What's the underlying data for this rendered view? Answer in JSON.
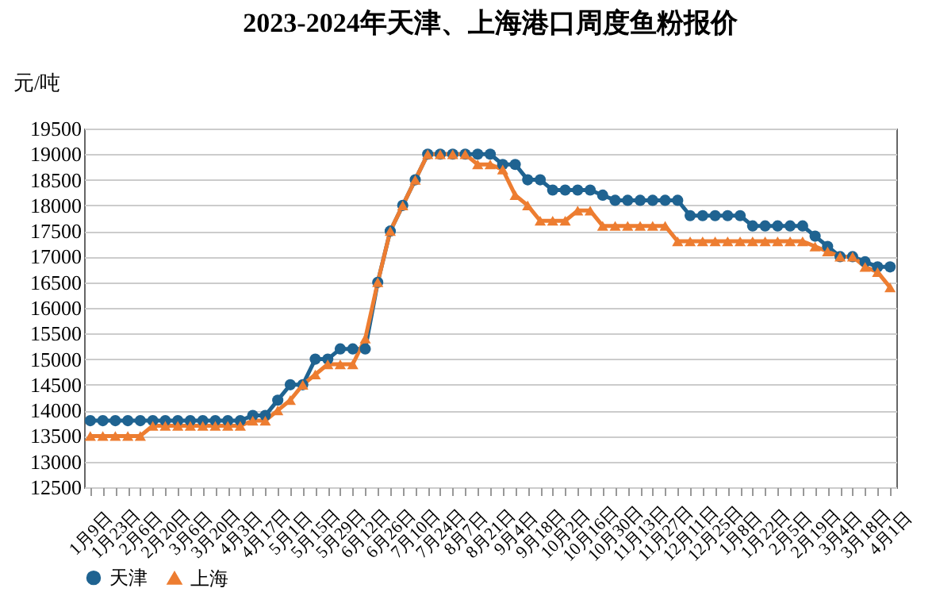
{
  "chart_data": {
    "type": "line",
    "title": "2023-2024年天津、上海港口周度鱼粉报价",
    "ylabel": "元/吨",
    "categories": [
      "1月9日",
      null,
      "1月23日",
      null,
      "2月6日",
      null,
      "2月20日",
      null,
      "3月6日",
      null,
      "3月20日",
      null,
      "4月3日",
      null,
      "4月17日",
      null,
      "5月1日",
      null,
      "5月15日",
      null,
      "5月29日",
      null,
      "6月12日",
      null,
      "6月26日",
      null,
      "7月10日",
      null,
      "7月24日",
      null,
      "8月7日",
      null,
      "8月21日",
      null,
      "9月4日",
      null,
      "9月18日",
      null,
      "10月2日",
      null,
      "10月16日",
      null,
      "10月30日",
      null,
      "11月13日",
      null,
      "11月27日",
      null,
      "12月11日",
      null,
      "12月25日",
      null,
      "1月8日",
      null,
      "1月22日",
      null,
      "2月5日",
      null,
      "2月19日",
      null,
      "3月4日",
      null,
      "3月18日",
      null,
      "4月1日"
    ],
    "series": [
      {
        "name": "天津",
        "color": "#1f6391",
        "marker": "circle",
        "values": [
          13800,
          13800,
          13800,
          13800,
          13800,
          13800,
          13800,
          13800,
          13800,
          13800,
          13800,
          13800,
          13800,
          13900,
          13900,
          14200,
          14500,
          14500,
          15000,
          15000,
          15200,
          15200,
          15200,
          16500,
          17500,
          18000,
          18500,
          19000,
          19000,
          19000,
          19000,
          19000,
          19000,
          18800,
          18800,
          18500,
          18500,
          18300,
          18300,
          18300,
          18300,
          18200,
          18100,
          18100,
          18100,
          18100,
          18100,
          18100,
          17800,
          17800,
          17800,
          17800,
          17800,
          17600,
          17600,
          17600,
          17600,
          17600,
          17400,
          17200,
          17000,
          17000,
          16900,
          16800,
          16800
        ]
      },
      {
        "name": "上海",
        "color": "#ed7d31",
        "marker": "triangle",
        "values": [
          13500,
          13500,
          13500,
          13500,
          13500,
          13700,
          13700,
          13700,
          13700,
          13700,
          13700,
          13700,
          13700,
          13800,
          13800,
          14000,
          14200,
          14500,
          14700,
          14900,
          14900,
          14900,
          15400,
          16500,
          17500,
          18000,
          18500,
          19000,
          19000,
          19000,
          19000,
          18800,
          18800,
          18700,
          18200,
          18000,
          17700,
          17700,
          17700,
          17900,
          17900,
          17600,
          17600,
          17600,
          17600,
          17600,
          17600,
          17300,
          17300,
          17300,
          17300,
          17300,
          17300,
          17300,
          17300,
          17300,
          17300,
          17300,
          17200,
          17100,
          17000,
          17000,
          16800,
          16700,
          16400
        ]
      }
    ],
    "ylim": [
      12500,
      19500
    ],
    "yticks": [
      12500,
      13000,
      13500,
      14000,
      14500,
      15000,
      15500,
      16000,
      16500,
      17000,
      17500,
      18000,
      18500,
      19000,
      19500
    ],
    "grid": "y",
    "legend": "bottom",
    "line_style": "solid"
  }
}
